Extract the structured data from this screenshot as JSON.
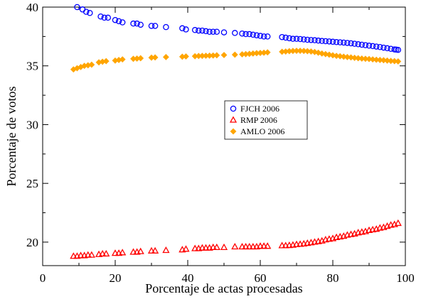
{
  "chart_data": {
    "type": "scatter",
    "xlabel": "Porcentaje de actas procesadas",
    "ylabel": "Porcentaje de votos",
    "xlim": [
      0,
      100
    ],
    "ylim": [
      18,
      40
    ],
    "xticks": [
      "0",
      "20",
      "40",
      "60",
      "80",
      "100"
    ],
    "yticks": [
      "20",
      "25",
      "30",
      "35",
      "40"
    ],
    "grid": false,
    "legend_position": "center-right",
    "series": [
      {
        "name": "FJCH  2006",
        "marker": "circle",
        "color": "#0000ff",
        "x": [
          9.5,
          11,
          12,
          13,
          16,
          17,
          18,
          20,
          21,
          22,
          25,
          26,
          27,
          30,
          31,
          34,
          38.5,
          39.5,
          42,
          43,
          44,
          45,
          46,
          47,
          48,
          50,
          53,
          55,
          56,
          57,
          58,
          59,
          60,
          61,
          62,
          66,
          67,
          68,
          69,
          70,
          71,
          72,
          73,
          74,
          75,
          76,
          77,
          78,
          79,
          80,
          81,
          82,
          83,
          84,
          85,
          86,
          87,
          88,
          89,
          90,
          91,
          92,
          93,
          94,
          95,
          96,
          97,
          97.5,
          98
        ],
        "y": [
          40.0,
          39.8,
          39.6,
          39.5,
          39.2,
          39.1,
          39.1,
          38.9,
          38.8,
          38.7,
          38.6,
          38.6,
          38.5,
          38.4,
          38.4,
          38.3,
          38.2,
          38.1,
          38.05,
          38.0,
          38.0,
          37.95,
          37.9,
          37.9,
          37.9,
          37.85,
          37.8,
          37.75,
          37.7,
          37.7,
          37.65,
          37.6,
          37.55,
          37.5,
          37.5,
          37.45,
          37.4,
          37.35,
          37.3,
          37.3,
          37.28,
          37.25,
          37.22,
          37.2,
          37.18,
          37.15,
          37.12,
          37.1,
          37.08,
          37.05,
          37.02,
          37.0,
          36.98,
          36.95,
          36.92,
          36.88,
          36.84,
          36.8,
          36.76,
          36.72,
          36.68,
          36.64,
          36.6,
          36.55,
          36.5,
          36.45,
          36.4,
          36.38,
          36.36
        ]
      },
      {
        "name": "RMP 2006",
        "marker": "triangle",
        "color": "#ff0000",
        "x": [
          8.5,
          9.5,
          10.5,
          11.5,
          12.5,
          13.5,
          15.5,
          16.5,
          17.5,
          20,
          21,
          22,
          25,
          26,
          27,
          30,
          31,
          34,
          38.5,
          39.5,
          42,
          43,
          44,
          45,
          46,
          47,
          48,
          50,
          53,
          55,
          56,
          57,
          58,
          59,
          60,
          61,
          62,
          66,
          67,
          68,
          69,
          70,
          71,
          72,
          73,
          74,
          75,
          76,
          77,
          78,
          79,
          80,
          81,
          82,
          83,
          84,
          85,
          86,
          87,
          88,
          89,
          90,
          91,
          92,
          93,
          94,
          95,
          96,
          97,
          98
        ],
        "y": [
          18.8,
          18.8,
          18.85,
          18.85,
          18.9,
          18.9,
          18.95,
          19.0,
          19.0,
          19.05,
          19.05,
          19.1,
          19.15,
          19.15,
          19.2,
          19.25,
          19.25,
          19.3,
          19.35,
          19.4,
          19.45,
          19.45,
          19.5,
          19.5,
          19.5,
          19.55,
          19.55,
          19.55,
          19.6,
          19.6,
          19.6,
          19.6,
          19.6,
          19.6,
          19.65,
          19.65,
          19.65,
          19.7,
          19.7,
          19.72,
          19.75,
          19.8,
          19.82,
          19.85,
          19.9,
          19.95,
          20.0,
          20.05,
          20.1,
          20.2,
          20.25,
          20.3,
          20.4,
          20.45,
          20.5,
          20.6,
          20.65,
          20.7,
          20.8,
          20.85,
          20.9,
          21.0,
          21.05,
          21.1,
          21.2,
          21.25,
          21.35,
          21.45,
          21.5,
          21.6
        ]
      },
      {
        "name": "AMLO 2006",
        "marker": "diamond",
        "color": "#ffa500",
        "x": [
          8.5,
          9.5,
          10.5,
          11.5,
          12.5,
          13.5,
          15.5,
          16.5,
          17.5,
          20,
          21,
          22,
          25,
          26,
          27,
          30,
          31,
          34,
          38.5,
          39.5,
          42,
          43,
          44,
          45,
          46,
          47,
          48,
          50,
          53,
          55,
          56,
          57,
          58,
          59,
          60,
          61,
          62,
          66,
          67,
          68,
          69,
          70,
          71,
          72,
          73,
          74,
          75,
          76,
          77,
          78,
          79,
          80,
          81,
          82,
          83,
          84,
          85,
          86,
          87,
          88,
          89,
          90,
          91,
          92,
          93,
          94,
          95,
          96,
          97,
          98
        ],
        "y": [
          34.7,
          34.8,
          34.9,
          35.0,
          35.05,
          35.1,
          35.3,
          35.35,
          35.4,
          35.45,
          35.5,
          35.55,
          35.6,
          35.62,
          35.65,
          35.7,
          35.72,
          35.75,
          35.78,
          35.8,
          35.82,
          35.84,
          35.85,
          35.86,
          35.87,
          35.88,
          35.9,
          35.92,
          35.95,
          35.98,
          36.0,
          36.02,
          36.05,
          36.08,
          36.1,
          36.12,
          36.15,
          36.2,
          36.22,
          36.25,
          36.27,
          36.28,
          36.28,
          36.27,
          36.25,
          36.22,
          36.18,
          36.12,
          36.05,
          36.0,
          35.95,
          35.9,
          35.85,
          35.82,
          35.78,
          35.75,
          35.72,
          35.68,
          35.65,
          35.62,
          35.6,
          35.58,
          35.55,
          35.52,
          35.5,
          35.48,
          35.45,
          35.42,
          35.4,
          35.38
        ]
      }
    ]
  }
}
